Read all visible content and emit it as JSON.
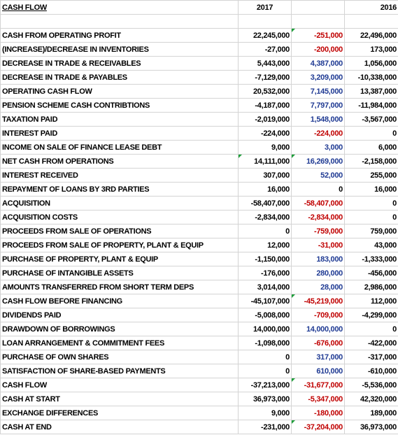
{
  "header": {
    "title": "CASH FLOW",
    "years": [
      "2017",
      "2016"
    ]
  },
  "rows": [
    [
      "CASH FROM OPERATING PROFIT",
      "22,245,000",
      "-251,000",
      "22,496,000"
    ],
    [
      "(INCREASE)/DECREASE IN INVENTORIES",
      "-27,000",
      "-200,000",
      "173,000"
    ],
    [
      "DECREASE IN TRADE & RECEIVABLES",
      "5,443,000",
      "4,387,000",
      "1,056,000"
    ],
    [
      "DECREASE IN TRADE & PAYABLES",
      "-7,129,000",
      "3,209,000",
      "-10,338,000"
    ],
    [
      "OPERATING CASH FLOW",
      "20,532,000",
      "7,145,000",
      "13,387,000"
    ],
    [
      "PENSION SCHEME CASH CONTRIBTIONS",
      "-4,187,000",
      "7,797,000",
      "-11,984,000"
    ],
    [
      "TAXATION PAID",
      "-2,019,000",
      "1,548,000",
      "-3,567,000"
    ],
    [
      "INTEREST PAID",
      "-224,000",
      "-224,000",
      "0"
    ],
    [
      "INCOME ON SALE OF FINANCE LEASE DEBT",
      "9,000",
      "3,000",
      "6,000"
    ],
    [
      "NET CASH FROM OPERATIONS",
      "14,111,000",
      "16,269,000",
      "-2,158,000"
    ],
    [
      "INTEREST RECEIVED",
      "307,000",
      "52,000",
      "255,000"
    ],
    [
      "REPAYMENT OF LOANS BY 3RD PARTIES",
      "16,000",
      "0",
      "16,000"
    ],
    [
      "ACQUISITION",
      "-58,407,000",
      "-58,407,000",
      "0"
    ],
    [
      "ACQUISITION COSTS",
      "-2,834,000",
      "-2,834,000",
      "0"
    ],
    [
      "PROCEEDS FROM SALE OF OPERATIONS",
      "0",
      "-759,000",
      "759,000"
    ],
    [
      "PROCEEDS FROM SALE OF PROPERTY, PLANT & EQUIP",
      "12,000",
      "-31,000",
      "43,000"
    ],
    [
      "PURCHASE OF PROPERTY, PLANT & EQUIP",
      "-1,150,000",
      "183,000",
      "-1,333,000"
    ],
    [
      "PURCHASE OF INTANGIBLE ASSETS",
      "-176,000",
      "280,000",
      "-456,000"
    ],
    [
      "AMOUNTS TRANSFERRED FROM SHORT TERM DEPS",
      "3,014,000",
      "28,000",
      "2,986,000"
    ],
    [
      "CASH FLOW BEFORE FINANCING",
      "-45,107,000",
      "-45,219,000",
      "112,000"
    ],
    [
      "DIVIDENDS PAID",
      "-5,008,000",
      "-709,000",
      "-4,299,000"
    ],
    [
      "DRAWDOWN OF BORROWINGS",
      "14,000,000",
      "14,000,000",
      "0"
    ],
    [
      "LOAN ARRANGEMENT & COMMITMENT FEES",
      "-1,098,000",
      "-676,000",
      "-422,000"
    ],
    [
      "PURCHASE OF OWN SHARES",
      "0",
      "317,000",
      "-317,000"
    ],
    [
      "SATISFACTION OF SHARE-BASED PAYMENTS",
      "0",
      "610,000",
      "-610,000"
    ],
    [
      "CASH FLOW",
      "-37,213,000",
      "-31,677,000",
      "-5,536,000"
    ],
    [
      "CASH AT START",
      "36,973,000",
      "-5,347,000",
      "42,320,000"
    ],
    [
      "EXCHANGE DIFFERENCES",
      "9,000",
      "-180,000",
      "189,000"
    ],
    [
      "CASH AT END",
      "-231,000",
      "-37,204,000",
      "36,973,000"
    ]
  ]
}
